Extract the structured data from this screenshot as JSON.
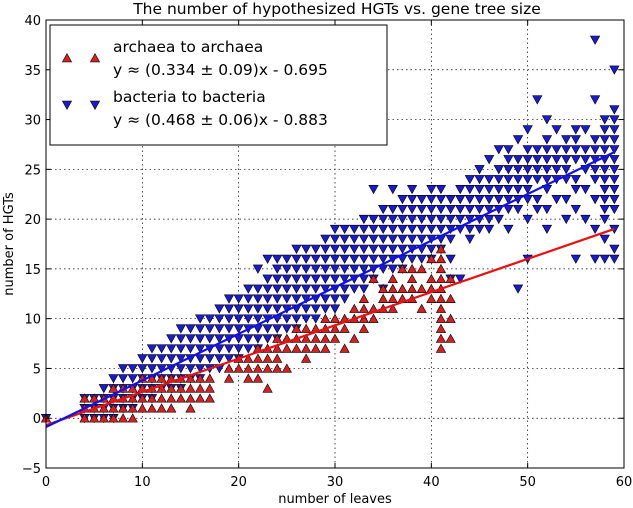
{
  "chart_data": {
    "type": "scatter",
    "title": "The number of hypothesized HGTs vs. gene tree size",
    "xlabel": "number of leaves",
    "ylabel": "number of HGTs",
    "xlim": [
      0,
      60
    ],
    "ylim": [
      -5,
      40
    ],
    "xticks": [
      0,
      10,
      20,
      30,
      40,
      50,
      60
    ],
    "yticks": [
      -5,
      0,
      5,
      10,
      15,
      20,
      25,
      30,
      35,
      40
    ],
    "xtick_labels": [
      "0",
      "10",
      "20",
      "30",
      "40",
      "50",
      "60"
    ],
    "ytick_labels": [
      "−5",
      "0",
      "5",
      "10",
      "15",
      "20",
      "25",
      "30",
      "35",
      "40"
    ],
    "grid": true,
    "legend_position": "upper-left",
    "series": [
      {
        "name": "archaea to archaea",
        "label": "archaea to archaea",
        "fit_label": "y ≈ (0.334 ± 0.09)x - 0.695",
        "color": "#d62020",
        "line_color": "#e81010",
        "marker": "triangle-up",
        "slope": 0.334,
        "intercept": -0.695,
        "fit_range": [
          0,
          59
        ],
        "columns": [
          {
            "x": 0,
            "ys": [
              0
            ]
          },
          {
            "x": 4,
            "ys": [
              0,
              1,
              2
            ]
          },
          {
            "x": 5,
            "ys": [
              0,
              1,
              2
            ]
          },
          {
            "x": 6,
            "ys": [
              0,
              1,
              2
            ]
          },
          {
            "x": 7,
            "ys": [
              0,
              1,
              2,
              3
            ]
          },
          {
            "x": 8,
            "ys": [
              0,
              1,
              2,
              3
            ]
          },
          {
            "x": 9,
            "ys": [
              0,
              1,
              2,
              3
            ]
          },
          {
            "x": 10,
            "ys": [
              1,
              2,
              3,
              4
            ]
          },
          {
            "x": 11,
            "ys": [
              1,
              2,
              3,
              4
            ]
          },
          {
            "x": 12,
            "ys": [
              1,
              2,
              3,
              4
            ]
          },
          {
            "x": 13,
            "ys": [
              1,
              2,
              3,
              4
            ]
          },
          {
            "x": 14,
            "ys": [
              2,
              3,
              4
            ]
          },
          {
            "x": 15,
            "ys": [
              1,
              2,
              3,
              4
            ]
          },
          {
            "x": 16,
            "ys": [
              2,
              3,
              4
            ]
          },
          {
            "x": 17,
            "ys": [
              2,
              3,
              4
            ]
          },
          {
            "x": 19,
            "ys": [
              4,
              5
            ]
          },
          {
            "x": 20,
            "ys": [
              5,
              6
            ]
          },
          {
            "x": 21,
            "ys": [
              4,
              5,
              6
            ]
          },
          {
            "x": 22,
            "ys": [
              4,
              5,
              6,
              7
            ]
          },
          {
            "x": 23,
            "ys": [
              3,
              5,
              6,
              7
            ]
          },
          {
            "x": 24,
            "ys": [
              5,
              6,
              7,
              8
            ]
          },
          {
            "x": 25,
            "ys": [
              5,
              7,
              8
            ]
          },
          {
            "x": 26,
            "ys": [
              7,
              8,
              9
            ]
          },
          {
            "x": 27,
            "ys": [
              6,
              7,
              8,
              9
            ]
          },
          {
            "x": 28,
            "ys": [
              7,
              8,
              9
            ]
          },
          {
            "x": 29,
            "ys": [
              7,
              8,
              9,
              10
            ]
          },
          {
            "x": 30,
            "ys": [
              8,
              9,
              10
            ]
          },
          {
            "x": 31,
            "ys": [
              7,
              9,
              10
            ]
          },
          {
            "x": 32,
            "ys": [
              8,
              10,
              11
            ]
          },
          {
            "x": 33,
            "ys": [
              9,
              10,
              11,
              12
            ]
          },
          {
            "x": 34,
            "ys": [
              10,
              11,
              14
            ]
          },
          {
            "x": 35,
            "ys": [
              11,
              12,
              13
            ]
          },
          {
            "x": 36,
            "ys": [
              11,
              12,
              13,
              14
            ]
          },
          {
            "x": 37,
            "ys": [
              12,
              13,
              15
            ]
          },
          {
            "x": 38,
            "ys": [
              12,
              13,
              14,
              15
            ]
          },
          {
            "x": 39,
            "ys": [
              11,
              13,
              15
            ]
          },
          {
            "x": 40,
            "ys": [
              12,
              13,
              14,
              16
            ]
          },
          {
            "x": 41,
            "ys": [
              7,
              8,
              9,
              10,
              11,
              12,
              13,
              14,
              15,
              16,
              17
            ]
          },
          {
            "x": 42,
            "ys": [
              8,
              10,
              12,
              14
            ]
          }
        ]
      },
      {
        "name": "bacteria to bacteria",
        "label": "bacteria to bacteria",
        "fit_label": "y ≈ (0.468 ± 0.06)x - 0.883",
        "color": "#1a1ad2",
        "line_color": "#1010e8",
        "marker": "triangle-down",
        "slope": 0.468,
        "intercept": -0.883,
        "fit_range": [
          0,
          59
        ],
        "columns": [
          {
            "x": 0,
            "ys": [
              0
            ]
          },
          {
            "x": 4,
            "ys": [
              0,
              1,
              2
            ]
          },
          {
            "x": 5,
            "ys": [
              0,
              1,
              2
            ]
          },
          {
            "x": 6,
            "ys": [
              0,
              1,
              2,
              3
            ]
          },
          {
            "x": 7,
            "ys": [
              0,
              1,
              2,
              3,
              4
            ]
          },
          {
            "x": 8,
            "ys": [
              1,
              2,
              3,
              4,
              5
            ]
          },
          {
            "x": 9,
            "ys": [
              1,
              2,
              3,
              4,
              5
            ]
          },
          {
            "x": 10,
            "ys": [
              2,
              3,
              4,
              5,
              6
            ]
          },
          {
            "x": 11,
            "ys": [
              2,
              3,
              4,
              5,
              6,
              7
            ]
          },
          {
            "x": 12,
            "ys": [
              3,
              4,
              5,
              6,
              7
            ]
          },
          {
            "x": 13,
            "ys": [
              3,
              4,
              5,
              6,
              7,
              8
            ]
          },
          {
            "x": 14,
            "ys": [
              3,
              4,
              5,
              6,
              7,
              8,
              9
            ]
          },
          {
            "x": 15,
            "ys": [
              4,
              5,
              6,
              7,
              8,
              9
            ]
          },
          {
            "x": 16,
            "ys": [
              4,
              5,
              6,
              7,
              8,
              9,
              10
            ]
          },
          {
            "x": 17,
            "ys": [
              5,
              6,
              7,
              8,
              9,
              10
            ]
          },
          {
            "x": 18,
            "ys": [
              5,
              6,
              7,
              8,
              9,
              10,
              11
            ]
          },
          {
            "x": 19,
            "ys": [
              6,
              7,
              8,
              9,
              10,
              11,
              12
            ]
          },
          {
            "x": 20,
            "ys": [
              6,
              7,
              8,
              9,
              10,
              11,
              12
            ]
          },
          {
            "x": 21,
            "ys": [
              7,
              8,
              9,
              10,
              11,
              12,
              13
            ]
          },
          {
            "x": 22,
            "ys": [
              7,
              8,
              9,
              10,
              11,
              12,
              13,
              15
            ]
          },
          {
            "x": 23,
            "ys": [
              8,
              9,
              10,
              11,
              12,
              13,
              14,
              16
            ]
          },
          {
            "x": 24,
            "ys": [
              8,
              9,
              10,
              11,
              12,
              13,
              14,
              15,
              16
            ]
          },
          {
            "x": 25,
            "ys": [
              9,
              10,
              11,
              12,
              13,
              14,
              15,
              16
            ]
          },
          {
            "x": 26,
            "ys": [
              9,
              10,
              11,
              12,
              13,
              14,
              15,
              16,
              17
            ]
          },
          {
            "x": 27,
            "ys": [
              10,
              11,
              12,
              13,
              14,
              15,
              16,
              17
            ]
          },
          {
            "x": 28,
            "ys": [
              10,
              11,
              12,
              13,
              14,
              15,
              16,
              17
            ]
          },
          {
            "x": 29,
            "ys": [
              11,
              12,
              13,
              14,
              15,
              16,
              17,
              18
            ]
          },
          {
            "x": 30,
            "ys": [
              11,
              12,
              13,
              14,
              15,
              16,
              17,
              18,
              19
            ]
          },
          {
            "x": 31,
            "ys": [
              12,
              13,
              14,
              15,
              16,
              17,
              18,
              19
            ]
          },
          {
            "x": 32,
            "ys": [
              13,
              14,
              15,
              16,
              17,
              18,
              19
            ]
          },
          {
            "x": 33,
            "ys": [
              13,
              14,
              15,
              16,
              17,
              18,
              19,
              20
            ]
          },
          {
            "x": 34,
            "ys": [
              14,
              15,
              16,
              17,
              18,
              19,
              20,
              23
            ]
          },
          {
            "x": 35,
            "ys": [
              13,
              15,
              16,
              17,
              18,
              19,
              20,
              21
            ]
          },
          {
            "x": 36,
            "ys": [
              15,
              16,
              17,
              18,
              19,
              20,
              21,
              23
            ]
          },
          {
            "x": 37,
            "ys": [
              15,
              16,
              17,
              18,
              19,
              20,
              21,
              22
            ]
          },
          {
            "x": 38,
            "ys": [
              16,
              17,
              18,
              19,
              20,
              21,
              22,
              23
            ]
          },
          {
            "x": 39,
            "ys": [
              16,
              17,
              18,
              19,
              20,
              21,
              22
            ]
          },
          {
            "x": 40,
            "ys": [
              16,
              17,
              18,
              19,
              20,
              21,
              22,
              23
            ]
          },
          {
            "x": 41,
            "ys": [
              17,
              18,
              19,
              20,
              21,
              22,
              23
            ]
          },
          {
            "x": 42,
            "ys": [
              14,
              16,
              18,
              19,
              20,
              21,
              22
            ]
          },
          {
            "x": 43,
            "ys": [
              14,
              19,
              20,
              21,
              22,
              23
            ]
          },
          {
            "x": 44,
            "ys": [
              18,
              19,
              20,
              21,
              22,
              23,
              24
            ]
          },
          {
            "x": 45,
            "ys": [
              19,
              20,
              21,
              22,
              23,
              24,
              25
            ]
          },
          {
            "x": 46,
            "ys": [
              19,
              20,
              21,
              22,
              23,
              24,
              26
            ]
          },
          {
            "x": 47,
            "ys": [
              20,
              21,
              22,
              23,
              24,
              25,
              27
            ]
          },
          {
            "x": 48,
            "ys": [
              19,
              21,
              22,
              23,
              24,
              25,
              26,
              27
            ]
          },
          {
            "x": 49,
            "ys": [
              13,
              21,
              22,
              23,
              24,
              25,
              26,
              28
            ]
          },
          {
            "x": 50,
            "ys": [
              16,
              20,
              22,
              23,
              24,
              25,
              26,
              27,
              29
            ]
          },
          {
            "x": 51,
            "ys": [
              21,
              22,
              24,
              25,
              26,
              27,
              32
            ]
          },
          {
            "x": 52,
            "ys": [
              19,
              21,
              23,
              24,
              25,
              26,
              27,
              28,
              30
            ]
          },
          {
            "x": 53,
            "ys": [
              22,
              24,
              25,
              26,
              27,
              29
            ]
          },
          {
            "x": 54,
            "ys": [
              20,
              22,
              24,
              25,
              26,
              27,
              28
            ]
          },
          {
            "x": 55,
            "ys": [
              16,
              21,
              23,
              24,
              26,
              27,
              28,
              29
            ]
          },
          {
            "x": 56,
            "ys": [
              20,
              23,
              25,
              26,
              27,
              29
            ]
          },
          {
            "x": 57,
            "ys": [
              16,
              19,
              22,
              24,
              25,
              26,
              27,
              28,
              32,
              38
            ]
          },
          {
            "x": 58,
            "ys": [
              16,
              18,
              20,
              21,
              22,
              23,
              24,
              25,
              26,
              27,
              28,
              29,
              30
            ]
          },
          {
            "x": 59,
            "ys": [
              16,
              17,
              19,
              21,
              22,
              23,
              24,
              25,
              26,
              27,
              28,
              29,
              30,
              31,
              35
            ]
          }
        ]
      }
    ]
  }
}
